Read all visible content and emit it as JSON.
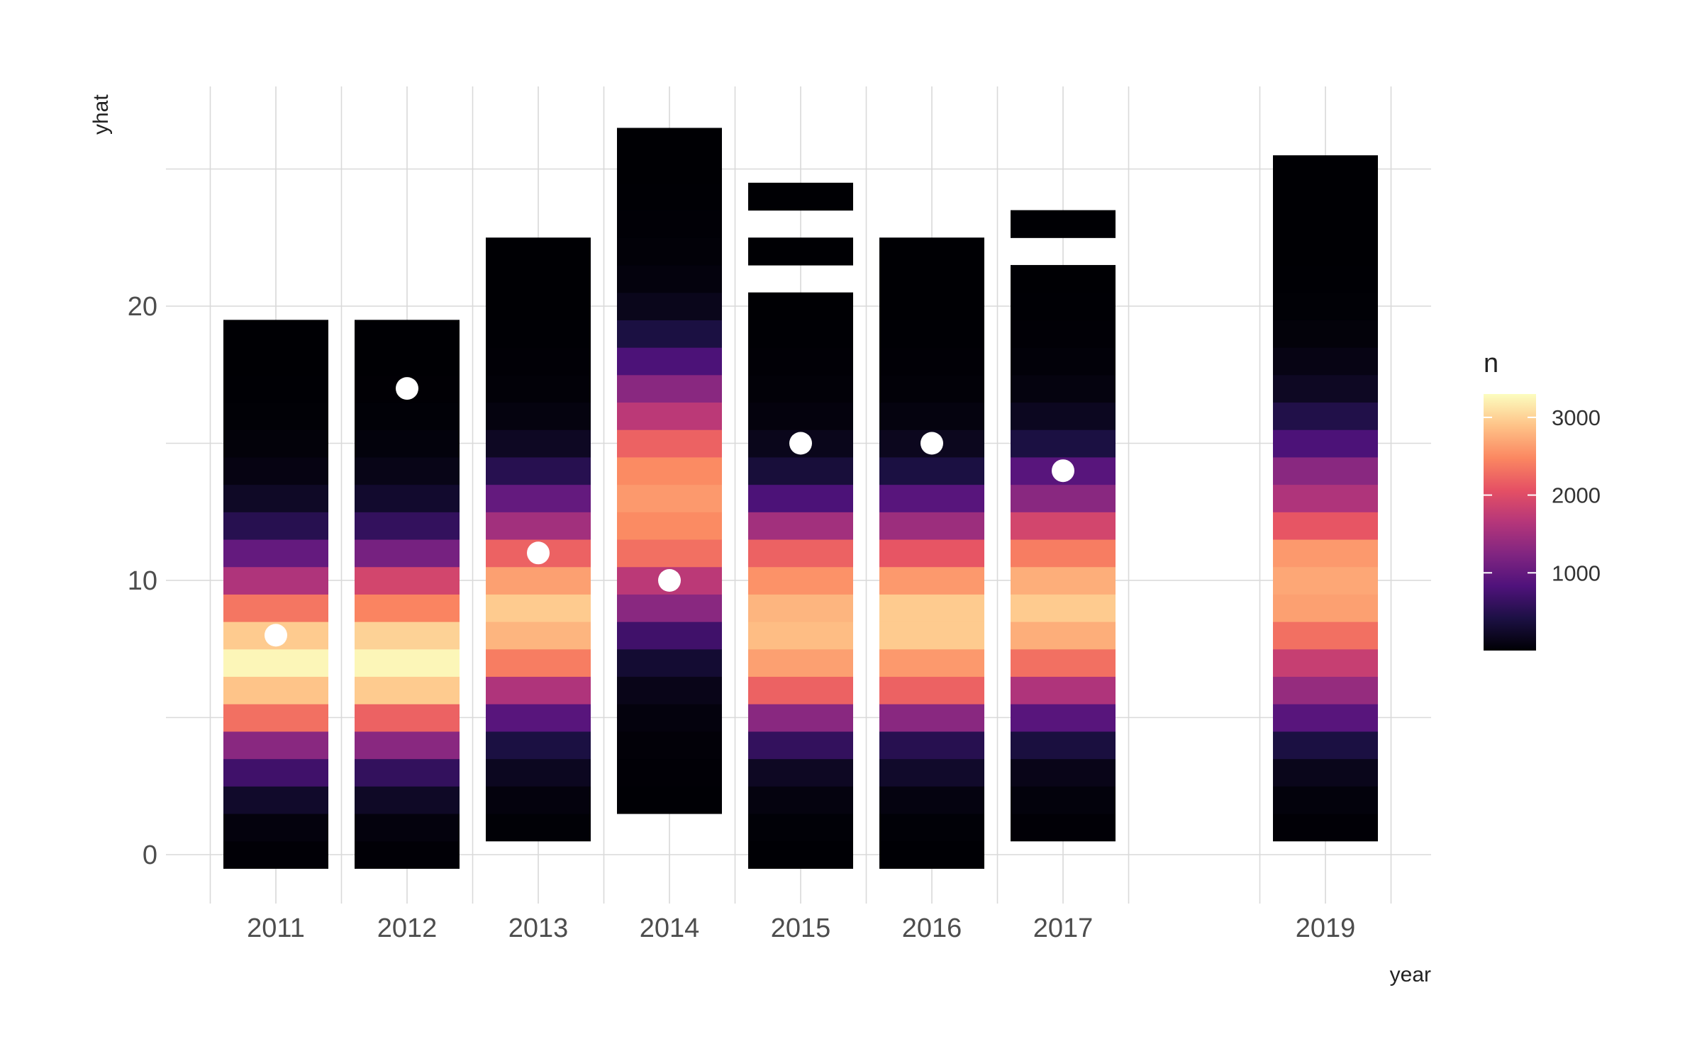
{
  "chart_data": {
    "type": "heatmap",
    "xlabel": "year",
    "ylabel": "yhat",
    "x_ticks": [
      "2011",
      "2012",
      "2013",
      "2014",
      "2015",
      "2016",
      "2017",
      "2019"
    ],
    "y_ticks": [
      0,
      10,
      20
    ],
    "xlim": [
      2010.5,
      2019.5
    ],
    "ylim": [
      -1.8,
      28
    ],
    "grid": true,
    "legend": {
      "title": "n",
      "position": "right",
      "ticks": [
        1000,
        2000,
        3000
      ],
      "range": [
        0,
        3300
      ],
      "palette": "magma",
      "colors": [
        "#000004",
        "#1c1044",
        "#4f127b",
        "#812581",
        "#b5367a",
        "#e55064",
        "#fb8761",
        "#fec287",
        "#fcfdbf"
      ]
    },
    "columns": [
      {
        "year": 2011,
        "yhat": [
          0,
          1,
          2,
          3,
          4,
          5,
          6,
          7,
          8,
          9,
          10,
          11,
          12,
          13,
          14,
          15,
          16,
          17,
          18,
          19
        ],
        "n": [
          10,
          60,
          250,
          700,
          1300,
          2300,
          2900,
          3250,
          2950,
          2350,
          1600,
          1000,
          500,
          220,
          90,
          40,
          15,
          5,
          3,
          1
        ]
      },
      {
        "year": 2012,
        "yhat": [
          0,
          1,
          2,
          3,
          4,
          5,
          6,
          7,
          8,
          9,
          10,
          11,
          12,
          13,
          14,
          15,
          16,
          17,
          18,
          19
        ],
        "n": [
          10,
          60,
          220,
          600,
          1300,
          2200,
          2950,
          3250,
          3000,
          2450,
          1900,
          1150,
          600,
          270,
          120,
          50,
          20,
          8,
          3,
          1
        ]
      },
      {
        "year": 2013,
        "yhat": [
          1,
          2,
          3,
          4,
          5,
          6,
          7,
          8,
          9,
          10,
          11,
          12,
          13,
          14,
          15,
          16,
          17,
          18,
          19,
          20,
          21,
          22
        ],
        "n": [
          15,
          60,
          180,
          400,
          900,
          1600,
          2400,
          2800,
          2950,
          2650,
          2200,
          1500,
          1000,
          500,
          200,
          70,
          25,
          10,
          5,
          3,
          2,
          1
        ]
      },
      {
        "year": 2014,
        "yhat": [
          2,
          3,
          4,
          5,
          6,
          7,
          8,
          9,
          10,
          11,
          12,
          13,
          14,
          15,
          16,
          17,
          18,
          19,
          20,
          21,
          22,
          23,
          24,
          25,
          26
        ],
        "n": [
          5,
          10,
          25,
          60,
          130,
          300,
          700,
          1300,
          1700,
          2300,
          2500,
          2600,
          2500,
          2200,
          1700,
          1300,
          800,
          400,
          150,
          60,
          25,
          10,
          5,
          2,
          1
        ]
      },
      {
        "year": 2015,
        "yhat": [
          0,
          1,
          2,
          3,
          4,
          5,
          6,
          7,
          8,
          9,
          10,
          11,
          12,
          13,
          14,
          15,
          16,
          17,
          18,
          19,
          20,
          22,
          24
        ],
        "n": [
          5,
          20,
          70,
          200,
          600,
          1300,
          2200,
          2650,
          2850,
          2800,
          2550,
          2200,
          1500,
          800,
          350,
          150,
          60,
          25,
          10,
          5,
          2,
          1,
          1
        ]
      },
      {
        "year": 2016,
        "yhat": [
          0,
          1,
          2,
          3,
          4,
          5,
          6,
          7,
          8,
          9,
          10,
          11,
          12,
          13,
          14,
          15,
          16,
          17,
          18,
          19,
          20,
          21,
          22
        ],
        "n": [
          5,
          20,
          80,
          250,
          500,
          1300,
          2200,
          2600,
          2950,
          2950,
          2600,
          2100,
          1450,
          900,
          400,
          170,
          70,
          25,
          10,
          5,
          3,
          2,
          1
        ]
      },
      {
        "year": 2017,
        "yhat": [
          1,
          2,
          3,
          4,
          5,
          6,
          7,
          8,
          9,
          10,
          11,
          12,
          13,
          14,
          15,
          16,
          17,
          18,
          19,
          20,
          21,
          23
        ],
        "n": [
          10,
          50,
          130,
          380,
          900,
          1600,
          2300,
          2750,
          2950,
          2750,
          2400,
          1900,
          1300,
          900,
          400,
          180,
          70,
          30,
          10,
          5,
          2,
          1
        ]
      },
      {
        "year": 2019,
        "yhat": [
          1,
          2,
          3,
          4,
          5,
          6,
          7,
          8,
          9,
          10,
          11,
          12,
          13,
          14,
          15,
          16,
          17,
          18,
          19,
          20,
          21,
          22,
          23,
          24,
          25
        ],
        "n": [
          10,
          50,
          150,
          400,
          900,
          1400,
          1800,
          2300,
          2650,
          2700,
          2600,
          2100,
          1600,
          1300,
          800,
          450,
          200,
          100,
          40,
          15,
          6,
          3,
          2,
          1,
          1
        ]
      }
    ],
    "points": [
      {
        "year": 2011,
        "yhat": 8
      },
      {
        "year": 2012,
        "yhat": 17
      },
      {
        "year": 2013,
        "yhat": 11
      },
      {
        "year": 2014,
        "yhat": 10
      },
      {
        "year": 2015,
        "yhat": 15
      },
      {
        "year": 2016,
        "yhat": 15
      },
      {
        "year": 2017,
        "yhat": 14
      }
    ]
  }
}
